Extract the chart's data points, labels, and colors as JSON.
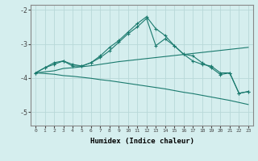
{
  "xlabel": "Humidex (Indice chaleur)",
  "background_color": "#d5eeee",
  "grid_color": "#b8d8d8",
  "line_color": "#1a7a6e",
  "xlim": [
    -0.5,
    23.5
  ],
  "ylim": [
    -5.4,
    -1.85
  ],
  "yticks": [
    -5,
    -4,
    -3,
    -2
  ],
  "xticks": [
    0,
    1,
    2,
    3,
    4,
    5,
    6,
    7,
    8,
    9,
    10,
    11,
    12,
    13,
    14,
    15,
    16,
    17,
    18,
    19,
    20,
    21,
    22,
    23
  ],
  "ly1": [
    -3.85,
    -3.7,
    -3.6,
    -3.5,
    -3.65,
    -3.65,
    -3.55,
    -3.35,
    -3.1,
    -2.9,
    -2.65,
    -2.4,
    -2.2,
    -2.55,
    -2.75,
    -3.05,
    -3.3,
    -3.35,
    -3.55,
    -3.7,
    -3.9,
    -3.85,
    -4.45,
    -4.4
  ],
  "ly2": [
    -3.85,
    -3.7,
    -3.55,
    -3.5,
    -3.6,
    -3.65,
    -3.55,
    -3.4,
    -3.2,
    -2.95,
    -2.7,
    -2.5,
    -2.25,
    -3.05,
    -2.85,
    -3.05,
    -3.3,
    -3.5,
    -3.6,
    -3.65,
    -3.85,
    -3.85,
    -4.45,
    -4.4
  ],
  "ly3": [
    -3.85,
    -3.82,
    -3.79,
    -3.72,
    -3.7,
    -3.67,
    -3.64,
    -3.6,
    -3.56,
    -3.52,
    -3.49,
    -3.46,
    -3.43,
    -3.4,
    -3.37,
    -3.34,
    -3.31,
    -3.28,
    -3.25,
    -3.22,
    -3.19,
    -3.16,
    -3.13,
    -3.1
  ],
  "ly4": [
    -3.85,
    -3.87,
    -3.89,
    -3.93,
    -3.95,
    -3.98,
    -4.01,
    -4.05,
    -4.08,
    -4.12,
    -4.16,
    -4.2,
    -4.24,
    -4.28,
    -4.32,
    -4.37,
    -4.42,
    -4.46,
    -4.51,
    -4.56,
    -4.61,
    -4.66,
    -4.72,
    -4.78
  ]
}
